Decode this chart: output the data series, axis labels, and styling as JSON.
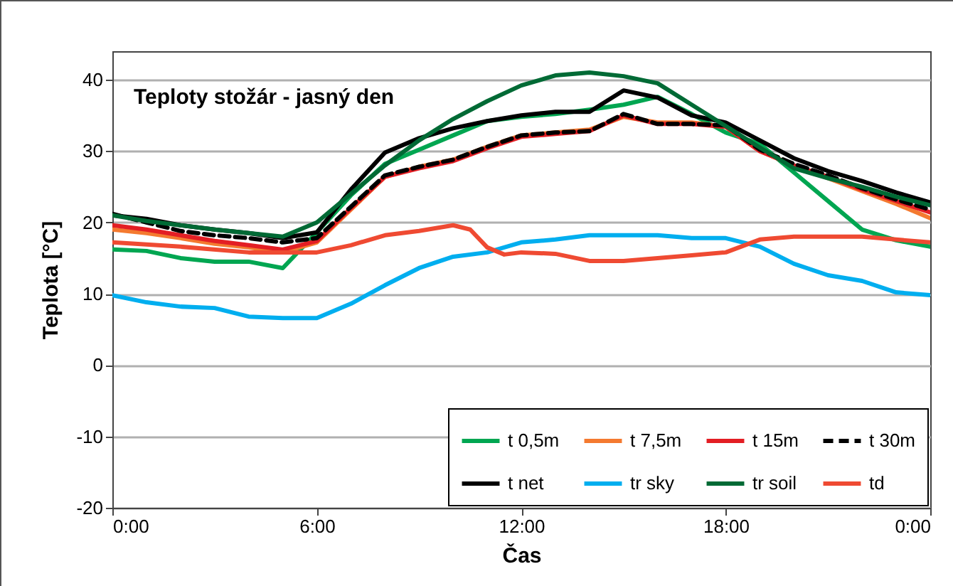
{
  "chart_data": {
    "type": "line",
    "title": "Teploty stožár - jasný den",
    "xlabel": "Čas",
    "ylabel": "Teplota [°C]",
    "x": [
      0,
      1,
      2,
      3,
      4,
      5,
      6,
      7,
      8,
      9,
      10,
      11,
      12,
      13,
      14,
      15,
      16,
      17,
      18,
      19,
      20,
      21,
      22,
      23,
      24
    ],
    "xlim": [
      0,
      24
    ],
    "xticks": [
      {
        "value": 0,
        "label": "0:00"
      },
      {
        "value": 6,
        "label": "6:00"
      },
      {
        "value": 12,
        "label": "12:00"
      },
      {
        "value": 18,
        "label": "18:00"
      },
      {
        "value": 24,
        "label": "0:00"
      }
    ],
    "ylim": [
      -20,
      44
    ],
    "yticks": [
      -20,
      -10,
      0,
      10,
      20,
      30,
      40
    ],
    "grid": "y",
    "legend": "bottom right",
    "line_style": "solid",
    "series": [
      {
        "name": "t 0,5m",
        "color": "#00a651",
        "values": [
          16.2,
          16,
          15,
          14.5,
          14.5,
          13.6,
          18.6,
          23.8,
          28.2,
          30.2,
          32.2,
          34.2,
          34.8,
          35.2,
          35.8,
          36.5,
          37.6,
          35.2,
          32.6,
          31,
          27,
          23,
          19,
          17.5,
          16.6
        ]
      },
      {
        "name": "t 7,5m",
        "color": "#f47a30",
        "values": [
          19,
          18.5,
          17.8,
          17,
          16.5,
          15.8,
          17.2,
          21.8,
          26.4,
          27.8,
          28.8,
          30.6,
          32.2,
          32.6,
          33,
          34.8,
          34,
          34,
          33.4,
          30,
          28,
          26.2,
          24.4,
          22.6,
          20.6
        ]
      },
      {
        "name": "t 15m",
        "color": "#e31e24",
        "values": [
          19.6,
          19,
          18.2,
          17.4,
          16.8,
          16.2,
          17.4,
          22,
          26.4,
          27.6,
          28.6,
          30.4,
          32,
          32.4,
          32.8,
          35,
          33.8,
          33.8,
          33.4,
          30,
          28,
          26.4,
          24.6,
          23,
          21.4
        ]
      },
      {
        "name": "t 30m",
        "color": "#000000",
        "line_style": "dashed",
        "values": [
          21.2,
          20,
          18.8,
          18.2,
          17.8,
          17.2,
          17.8,
          22.2,
          26.6,
          27.8,
          28.8,
          30.6,
          32.2,
          32.6,
          32.8,
          35.2,
          33.8,
          33.8,
          33.6,
          30.2,
          28.2,
          26.6,
          24.8,
          23.2,
          21.8
        ]
      },
      {
        "name": "t net",
        "color": "#000000",
        "values": [
          21,
          20.5,
          19.6,
          19,
          18.5,
          17.8,
          18.6,
          24.6,
          29.8,
          31.8,
          33.2,
          34.2,
          35,
          35.5,
          35.5,
          38.5,
          37.5,
          35,
          34,
          31.5,
          29,
          27.2,
          25.8,
          24.2,
          22.8
        ]
      },
      {
        "name": "tr sky",
        "color": "#00aeef",
        "values": [
          9.8,
          8.8,
          8.2,
          8,
          6.8,
          6.6,
          6.6,
          8.6,
          11.2,
          13.6,
          15.2,
          15.8,
          17.2,
          17.6,
          18.2,
          18.2,
          18.2,
          17.8,
          17.8,
          16.6,
          14.2,
          12.6,
          11.8,
          10.2,
          9.8
        ]
      },
      {
        "name": "tr soil",
        "color": "#006a35",
        "values": [
          21,
          20.2,
          19.6,
          19,
          18.5,
          18,
          20,
          24,
          28,
          31.5,
          34.5,
          37,
          39.2,
          40.6,
          41,
          40.5,
          39.5,
          36.5,
          33.5,
          30.5,
          27.6,
          26.2,
          25,
          23.6,
          22.4
        ]
      },
      {
        "name": "td",
        "color": "#ef4a32",
        "x": [
          0,
          2,
          4,
          6,
          7,
          8,
          9,
          10,
          10.5,
          11,
          11.5,
          12,
          13,
          14,
          15,
          16,
          17,
          18,
          19,
          20,
          22,
          24
        ],
        "values": [
          17.2,
          16.6,
          15.8,
          15.8,
          16.8,
          18.2,
          18.8,
          19.6,
          19,
          16.5,
          15.5,
          15.8,
          15.6,
          14.6,
          14.6,
          15,
          15.4,
          15.8,
          17.6,
          18,
          18,
          17.2
        ]
      }
    ]
  }
}
